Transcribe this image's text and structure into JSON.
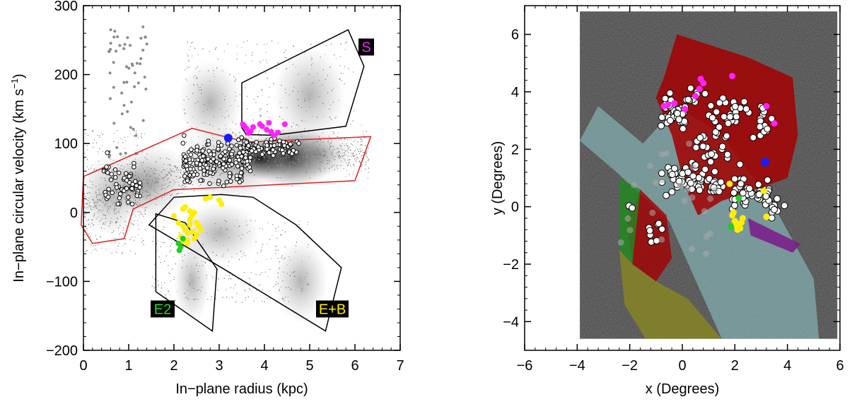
{
  "chart_data": [
    {
      "type": "scatter",
      "title": "",
      "xlabel": "In−plane radius (kpc)",
      "ylabel": "In−plane circular velocity (km s",
      "ylabel_unit_sup": "−1",
      "ylabel_close": ")",
      "xlim": [
        0,
        7
      ],
      "ylim": [
        -200,
        300
      ],
      "xticks": [
        0,
        1,
        2,
        3,
        4,
        5,
        6,
        7
      ],
      "yticks": [
        -200,
        -100,
        0,
        100,
        200,
        300
      ],
      "xtick_labels": [
        "0",
        "1",
        "2",
        "3",
        "4",
        "5",
        "6",
        "7"
      ],
      "ytick_labels": [
        "−200",
        "−100",
        "0",
        "100",
        "200",
        "300"
      ],
      "colors": {
        "red_region": "#e0201e",
        "black_region": "#000000",
        "magenta": "#ff22ff",
        "yellow": "#ffee00",
        "green": "#22cc22",
        "blue": "#1a1aff",
        "grey_points": "#8a8a8a"
      },
      "regions": [
        {
          "name": "red",
          "color": "#e0201e",
          "polygon": [
            [
              0,
              52
            ],
            [
              2.4,
              122
            ],
            [
              3.6,
              102
            ],
            [
              6.35,
              110
            ],
            [
              6,
              46
            ],
            [
              2,
              33
            ],
            [
              1.1,
              5
            ],
            [
              0.9,
              -38
            ],
            [
              0.2,
              -45
            ],
            [
              -0.05,
              -18
            ]
          ]
        },
        {
          "name": "S",
          "color": "#000000",
          "polygon": [
            [
              3.5,
              123
            ],
            [
              3.5,
              188
            ],
            [
              5.85,
              265
            ],
            [
              6.2,
              212
            ],
            [
              5.8,
              125
            ],
            [
              4.2,
              112
            ],
            [
              3.6,
              113
            ]
          ]
        },
        {
          "name": "E2",
          "color": "#000000",
          "polygon": [
            [
              1.6,
              -2
            ],
            [
              1.6,
              -115
            ],
            [
              2.85,
              -172
            ],
            [
              2.95,
              -82
            ],
            [
              2.25,
              -15
            ]
          ]
        },
        {
          "name": "E+B",
          "color": "#000000",
          "polygon": [
            [
              1.45,
              -18
            ],
            [
              2.0,
              22
            ],
            [
              3.05,
              26
            ],
            [
              3.75,
              22
            ],
            [
              4.7,
              -18
            ],
            [
              5.7,
              -80
            ],
            [
              5.35,
              -172
            ],
            [
              3.1,
              -82
            ]
          ]
        }
      ],
      "region_labels": [
        {
          "text": "S",
          "x": 6.25,
          "y": 240,
          "color": "#ff22ff",
          "bg": "#000000"
        },
        {
          "text": "E2",
          "x": 1.75,
          "y": -140,
          "color": "#22dd22",
          "bg": "#000000"
        },
        {
          "text": "E+B",
          "x": 5.5,
          "y": -140,
          "color": "#ffee00",
          "bg": "#000000"
        }
      ],
      "series": [
        {
          "color": "#ff22ff",
          "x": [
            3.52,
            3.6,
            3.7,
            3.55,
            3.65,
            3.9,
            4.05,
            4.1,
            4.2,
            4.3,
            4.45,
            3.75,
            3.95,
            4.15
          ],
          "y": [
            128,
            122,
            118,
            126,
            115,
            128,
            120,
            130,
            112,
            116,
            128,
            124,
            125,
            117
          ]
        },
        {
          "color": "#ffee00",
          "x": [
            2.0,
            2.1,
            2.2,
            2.25,
            2.3,
            2.35,
            2.4,
            2.45,
            2.5,
            2.55,
            2.2,
            2.15,
            2.3,
            2.4,
            2.5,
            2.6,
            2.25,
            2.35,
            2.7,
            2.8,
            3.0,
            3.05,
            2.2,
            2.3,
            2.45,
            2.35
          ],
          "y": [
            -5,
            -15,
            -20,
            -25,
            -30,
            -10,
            -5,
            0,
            -15,
            -20,
            5,
            -35,
            -40,
            -28,
            -32,
            -25,
            8,
            2,
            20,
            22,
            18,
            12,
            -42,
            -45,
            -38,
            -18
          ]
        },
        {
          "color": "#22cc22",
          "x": [
            2.1,
            2.15,
            2.2,
            2.12
          ],
          "y": [
            -45,
            -50,
            -38,
            -55
          ]
        },
        {
          "color": "#1a1aff",
          "x": [
            3.2
          ],
          "y": [
            108
          ]
        }
      ]
    },
    {
      "type": "scatter",
      "title": "",
      "xlabel": "x (Degrees)",
      "ylabel": "y (Degrees)",
      "xlim": [
        -6,
        6
      ],
      "ylim": [
        -5,
        7
      ],
      "xticks": [
        -6,
        -4,
        -2,
        0,
        2,
        4,
        6
      ],
      "yticks": [
        -4,
        -2,
        0,
        2,
        4,
        6
      ],
      "xtick_labels": [
        "−6",
        "−4",
        "−2",
        "0",
        "2",
        "4",
        "6"
      ],
      "ytick_labels": [
        "−4",
        "−2",
        "0",
        "2",
        "4",
        "6"
      ],
      "colors": {
        "background_image": "#3a3a3a",
        "red_overlay": "#a30000",
        "cyan_overlay": "#8fc9cc",
        "green_overlay": "#1f8a1f",
        "yellow_overlay": "#8a8a1e",
        "purple_overlay": "#7a1a8a",
        "magenta": "#ff22ff",
        "yellow": "#ffee00",
        "green": "#22cc22",
        "blue": "#1a1aff"
      },
      "image_extent": [
        -3.9,
        5.9,
        -4.6,
        6.8
      ],
      "series": [
        {
          "color": "#ff22ff",
          "x": [
            0.7,
            0.8,
            0.5,
            0.65,
            1.9,
            -0.55,
            -0.7,
            0.1,
            3.2,
            3.5,
            -0.3
          ],
          "y": [
            4.45,
            4.3,
            3.85,
            4.1,
            4.55,
            3.55,
            3.5,
            3.4,
            3.5,
            2.9,
            3.6
          ]
        },
        {
          "color": "#ffee00",
          "x": [
            1.9,
            2.0,
            2.1,
            2.2,
            1.95,
            2.3,
            2.1,
            1.8,
            3.1,
            3.2,
            2.05,
            2.25
          ],
          "y": [
            -0.3,
            -0.5,
            -0.6,
            -0.75,
            -0.2,
            -0.4,
            -0.8,
            0.8,
            0.55,
            -0.35,
            -0.65,
            -0.55
          ]
        },
        {
          "color": "#22cc22",
          "x": [
            2.15,
            1.85
          ],
          "y": [
            0.3,
            -0.7
          ]
        },
        {
          "color": "#1a1aff",
          "x": [
            3.15
          ],
          "y": [
            1.55
          ]
        }
      ]
    }
  ]
}
